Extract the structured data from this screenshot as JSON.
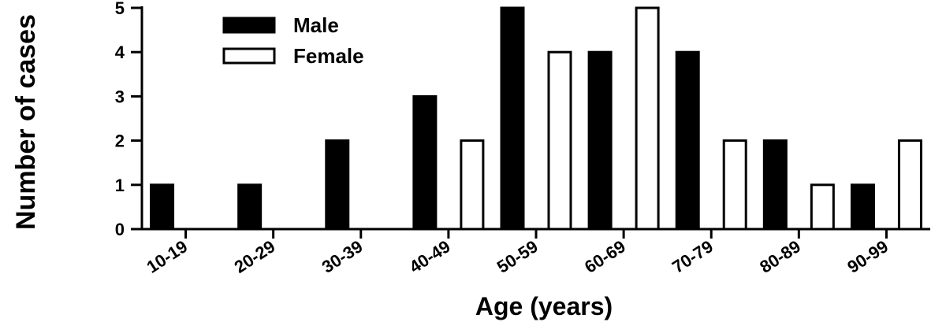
{
  "chart_data": {
    "type": "bar",
    "categories": [
      "10-19",
      "20-29",
      "30-39",
      "40-49",
      "50-59",
      "60-69",
      "70-79",
      "80-89",
      "90-99"
    ],
    "series": [
      {
        "name": "Male",
        "values": [
          1,
          1,
          2,
          3,
          5,
          4,
          4,
          2,
          1
        ],
        "color": "#000000"
      },
      {
        "name": "Female",
        "values": [
          0,
          0,
          0,
          2,
          4,
          5,
          2,
          1,
          2
        ],
        "color": "#ffffff"
      }
    ],
    "xlabel": "Age (years)",
    "ylabel": "Number of cases",
    "ylim": [
      0,
      5
    ],
    "yticks": [
      0,
      1,
      2,
      3,
      4,
      5
    ],
    "legend_position": "top-left",
    "grid": false
  }
}
